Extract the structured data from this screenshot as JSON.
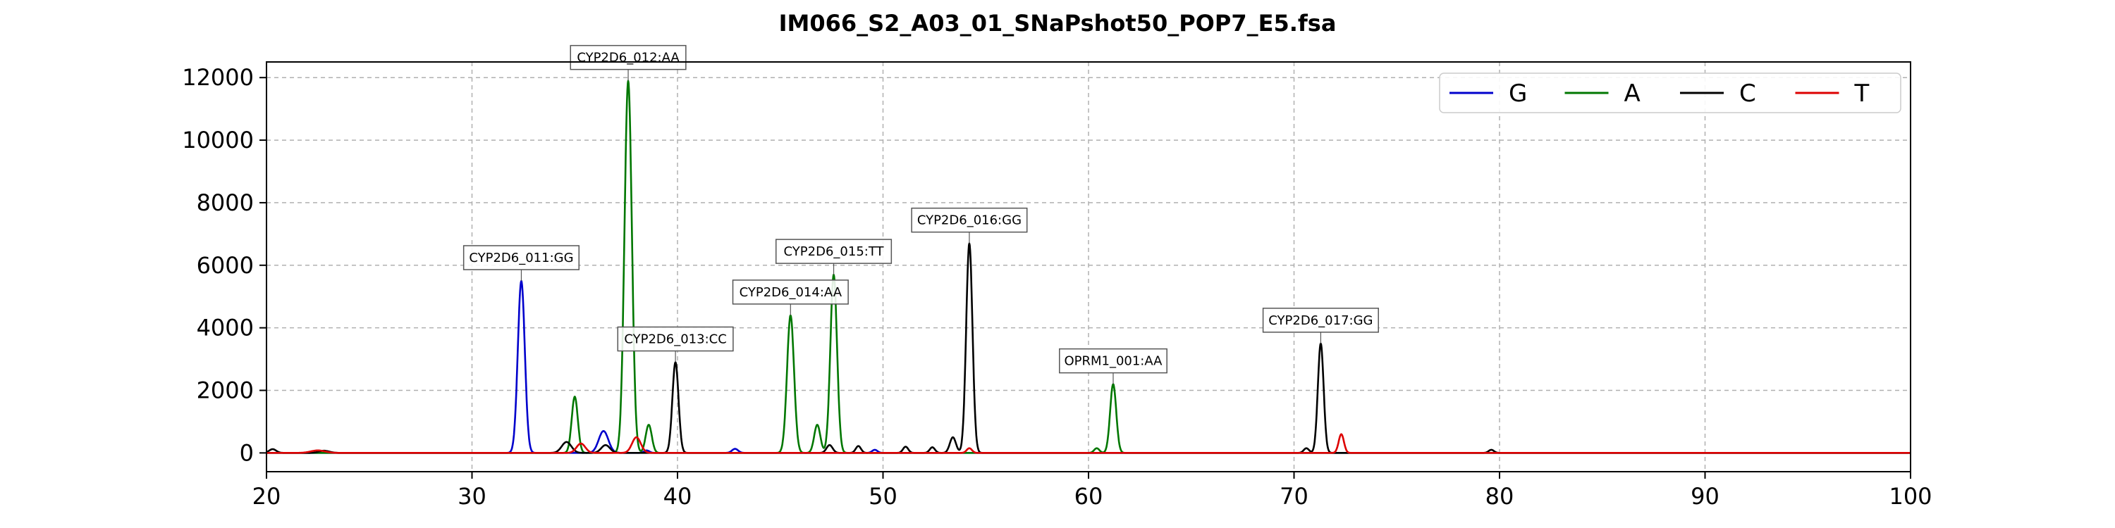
{
  "chart_data": {
    "type": "line",
    "title": "IM066_S2_A03_01_SNaPshot50_POP7_E5.fsa",
    "xlabel": "",
    "ylabel": "",
    "xlim": [
      20,
      100
    ],
    "ylim": [
      -600,
      12500
    ],
    "xticks": [
      20,
      30,
      40,
      50,
      60,
      70,
      80,
      90,
      100
    ],
    "yticks": [
      0,
      2000,
      4000,
      6000,
      8000,
      10000,
      12000
    ],
    "grid": true,
    "legend_position": "top-right",
    "series": [
      {
        "name": "G",
        "color": "#0000cc",
        "peaks": [
          [
            32.4,
            5500,
            0.4
          ],
          [
            36.4,
            700,
            0.55
          ],
          [
            42.8,
            130,
            0.35
          ],
          [
            49.6,
            100,
            0.3
          ],
          [
            38.5,
            80,
            0.3
          ]
        ]
      },
      {
        "name": "A",
        "color": "#007700",
        "peaks": [
          [
            35.0,
            1800,
            0.35
          ],
          [
            37.6,
            11900,
            0.42
          ],
          [
            38.6,
            900,
            0.35
          ],
          [
            45.5,
            4400,
            0.4
          ],
          [
            47.6,
            5700,
            0.38
          ],
          [
            46.8,
            900,
            0.35
          ],
          [
            61.2,
            2200,
            0.35
          ],
          [
            60.4,
            150,
            0.3
          ]
        ]
      },
      {
        "name": "C",
        "color": "#000000",
        "peaks": [
          [
            20.3,
            120,
            0.4
          ],
          [
            22.8,
            70,
            0.6
          ],
          [
            34.6,
            350,
            0.55
          ],
          [
            36.5,
            250,
            0.5
          ],
          [
            39.9,
            2900,
            0.35
          ],
          [
            47.4,
            250,
            0.35
          ],
          [
            48.8,
            220,
            0.3
          ],
          [
            51.1,
            200,
            0.3
          ],
          [
            52.4,
            180,
            0.3
          ],
          [
            53.4,
            500,
            0.35
          ],
          [
            54.2,
            6700,
            0.36
          ],
          [
            70.6,
            150,
            0.3
          ],
          [
            71.3,
            3500,
            0.33
          ],
          [
            79.6,
            100,
            0.3
          ]
        ]
      },
      {
        "name": "T",
        "color": "#dd0000",
        "peaks": [
          [
            22.5,
            80,
            0.8
          ],
          [
            35.3,
            300,
            0.5
          ],
          [
            38.0,
            500,
            0.5
          ],
          [
            54.2,
            150,
            0.3
          ],
          [
            72.3,
            600,
            0.3
          ]
        ]
      }
    ],
    "annotations": [
      {
        "label": "CYP2D6_011:GG",
        "x": 32.4,
        "y": 5500
      },
      {
        "label": "CYP2D6_012:AA",
        "x": 37.6,
        "y": 11900
      },
      {
        "label": "CYP2D6_013:CC",
        "x": 39.9,
        "y": 2900
      },
      {
        "label": "CYP2D6_014:AA",
        "x": 45.5,
        "y": 4400
      },
      {
        "label": "CYP2D6_015:TT",
        "x": 47.6,
        "y": 5700
      },
      {
        "label": "CYP2D6_016:GG",
        "x": 54.2,
        "y": 6700
      },
      {
        "label": "OPRM1_001:AA",
        "x": 61.2,
        "y": 2200
      },
      {
        "label": "CYP2D6_017:GG",
        "x": 71.3,
        "y": 3500
      }
    ]
  }
}
